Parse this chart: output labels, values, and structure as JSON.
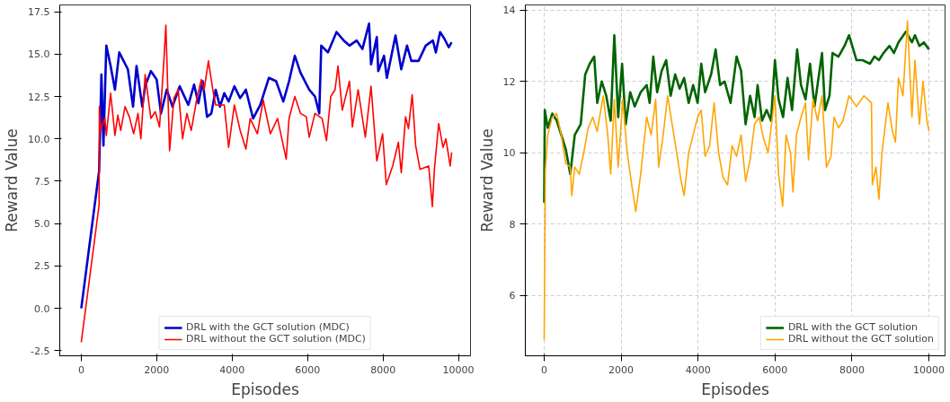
{
  "chart_data": [
    {
      "type": "line",
      "xlabel": "Episodes",
      "ylabel": "Reward Value",
      "xlim": [
        -570,
        10320
      ],
      "ylim": [
        -2.8,
        17.9
      ],
      "xticks": [
        0,
        2000,
        4000,
        6000,
        8000,
        10000
      ],
      "yticks": [
        {
          "value": -2.5,
          "label": "-2.5"
        },
        {
          "value": 0,
          "label": "0.0"
        },
        {
          "value": 2.5,
          "label": "2.5"
        },
        {
          "value": 5,
          "label": "5.0"
        },
        {
          "value": 7.5,
          "label": "7.5"
        },
        {
          "value": 10,
          "label": "10.0"
        },
        {
          "value": 12.5,
          "label": "12.5"
        },
        {
          "value": 15,
          "label": "15.0"
        },
        {
          "value": 17.5,
          "label": "17.5"
        }
      ],
      "grid": false,
      "legend": "bottom",
      "series": [
        {
          "name": "DRL with the GCT solution (MDC)",
          "color": "#0000cc",
          "x": [
            0,
            473,
            534,
            588,
            664,
            778,
            893,
            1007,
            1122,
            1236,
            1373,
            1465,
            1618,
            1694,
            1846,
            1999,
            2113,
            2266,
            2419,
            2609,
            2838,
            2991,
            3105,
            3220,
            3334,
            3449,
            3563,
            3678,
            3792,
            3907,
            4059,
            4212,
            4365,
            4555,
            4746,
            4975,
            5166,
            5357,
            5509,
            5662,
            5814,
            6043,
            6196,
            6310,
            6363,
            6539,
            6768,
            6959,
            7111,
            7302,
            7454,
            7630,
            7683,
            7836,
            7874,
            8027,
            8103,
            8332,
            8484,
            8637,
            8751,
            8942,
            9133,
            9324,
            9400,
            9514,
            9629,
            9743,
            9820
          ],
          "values": [
            0,
            8.1,
            13.8,
            9.6,
            15.5,
            14.3,
            12.9,
            15.1,
            14.6,
            14.1,
            11.9,
            14.3,
            11.9,
            13.1,
            14.0,
            13.5,
            11.5,
            12.9,
            11.9,
            13.1,
            12.0,
            13.2,
            12.1,
            13.4,
            11.3,
            11.5,
            12.9,
            11.9,
            12.7,
            12.2,
            13.1,
            12.4,
            12.9,
            11.2,
            12.0,
            13.6,
            13.4,
            12.2,
            13.4,
            14.9,
            13.9,
            12.9,
            12.5,
            11.5,
            15.5,
            15.1,
            16.3,
            15.8,
            15.5,
            15.8,
            15.3,
            16.8,
            14.4,
            16.0,
            14.0,
            14.9,
            13.6,
            16.1,
            14.1,
            15.5,
            14.6,
            14.6,
            15.5,
            15.8,
            15.1,
            16.3,
            15.9,
            15.4,
            15.7
          ]
        },
        {
          "name": "DRL without the GCT solution (MDC)",
          "color": "#ff0000",
          "x": [
            0,
            473,
            480,
            511,
            626,
            664,
            778,
            893,
            969,
            1046,
            1160,
            1274,
            1389,
            1503,
            1580,
            1694,
            1846,
            1961,
            2075,
            2190,
            2243,
            2342,
            2457,
            2571,
            2686,
            2800,
            2915,
            3067,
            3182,
            3258,
            3372,
            3487,
            3563,
            3792,
            3907,
            4059,
            4212,
            4365,
            4479,
            4670,
            4823,
            5013,
            5204,
            5433,
            5509,
            5662,
            5814,
            5967,
            6043,
            6196,
            6387,
            6501,
            6615,
            6730,
            6806,
            6921,
            7111,
            7188,
            7340,
            7531,
            7683,
            7836,
            7989,
            8088,
            8256,
            8408,
            8484,
            8599,
            8675,
            8774,
            8866,
            8981,
            9210,
            9309,
            9362,
            9476,
            9591,
            9667,
            9782,
            9820
          ],
          "values": [
            -2.0,
            6.1,
            11.9,
            10.5,
            11.2,
            10.2,
            12.7,
            10.2,
            11.4,
            10.5,
            11.9,
            11.3,
            10.3,
            11.5,
            10.0,
            13.8,
            11.2,
            11.6,
            10.7,
            14.6,
            16.7,
            9.3,
            12.4,
            12.9,
            10.0,
            11.5,
            10.5,
            12.4,
            13.5,
            12.9,
            14.6,
            12.9,
            12.0,
            12.0,
            9.5,
            12.0,
            10.5,
            9.4,
            11.2,
            10.3,
            12.3,
            10.3,
            11.2,
            8.8,
            11.2,
            12.5,
            11.5,
            11.3,
            10.1,
            11.5,
            11.2,
            9.9,
            12.5,
            12.9,
            14.3,
            11.7,
            13.4,
            10.7,
            12.9,
            10.1,
            13.1,
            8.7,
            10.3,
            7.3,
            8.4,
            9.8,
            8.0,
            11.3,
            10.6,
            12.6,
            9.6,
            8.2,
            8.4,
            6.0,
            8.2,
            10.9,
            9.5,
            10.0,
            8.4,
            9.2
          ]
        }
      ]
    },
    {
      "type": "line",
      "xlabel": "Episodes",
      "ylabel": "Reward Value",
      "xlim": [
        -490,
        10420
      ],
      "ylim": [
        4.3,
        14.15
      ],
      "xticks": [
        0,
        2000,
        4000,
        6000,
        8000,
        10000
      ],
      "yticks": [
        6,
        8,
        10,
        12,
        14
      ],
      "grid": true,
      "legend": "bottom right",
      "series": [
        {
          "name": "DRL with the GCT solution",
          "color": "#006400",
          "x": [
            0,
            16,
            93,
            210,
            327,
            444,
            561,
            678,
            795,
            950,
            1067,
            1184,
            1301,
            1379,
            1496,
            1613,
            1729,
            1823,
            1924,
            2025,
            2119,
            2236,
            2353,
            2508,
            2664,
            2742,
            2836,
            2937,
            3054,
            3171,
            3287,
            3404,
            3521,
            3638,
            3755,
            3872,
            3989,
            4082,
            4183,
            4339,
            4456,
            4573,
            4690,
            4845,
            5001,
            5118,
            5235,
            5352,
            5469,
            5547,
            5664,
            5781,
            5897,
            5998,
            6092,
            6209,
            6326,
            6443,
            6575,
            6676,
            6793,
            6910,
            7027,
            7105,
            7222,
            7300,
            7416,
            7494,
            7650,
            7806,
            7923,
            8118,
            8273,
            8468,
            8585,
            8702,
            8819,
            8975,
            9092,
            9209,
            9403,
            9559,
            9637,
            9754,
            9871,
            10004
          ],
          "values": [
            8.6,
            11.2,
            10.7,
            11.1,
            10.9,
            10.5,
            10.1,
            9.4,
            10.5,
            10.8,
            12.2,
            12.5,
            12.7,
            11.4,
            12.0,
            11.6,
            10.9,
            13.3,
            11.0,
            12.5,
            10.8,
            11.7,
            11.3,
            11.7,
            11.9,
            11.4,
            12.7,
            11.7,
            12.3,
            12.6,
            11.6,
            12.2,
            11.8,
            12.1,
            11.4,
            11.9,
            11.4,
            12.5,
            11.7,
            12.2,
            12.9,
            11.9,
            12.0,
            11.4,
            12.7,
            12.3,
            10.8,
            11.6,
            11.0,
            11.9,
            10.9,
            11.2,
            10.9,
            12.6,
            11.5,
            11.0,
            12.1,
            11.2,
            12.9,
            11.9,
            11.5,
            12.5,
            11.3,
            11.9,
            12.8,
            11.2,
            11.6,
            12.8,
            12.7,
            13.0,
            13.3,
            12.6,
            12.6,
            12.5,
            12.7,
            12.6,
            12.8,
            13.0,
            12.8,
            13.1,
            13.4,
            13.1,
            13.3,
            13.0,
            13.1,
            12.9
          ]
        },
        {
          "name": "DRL without the GCT solution",
          "color": "#ffa500",
          "x": [
            0,
            30,
            93,
            210,
            327,
            444,
            561,
            678,
            717,
            795,
            911,
            1028,
            1145,
            1262,
            1379,
            1535,
            1652,
            1729,
            1823,
            1924,
            2041,
            2158,
            2275,
            2380,
            2508,
            2664,
            2781,
            2898,
            2976,
            3093,
            3209,
            3326,
            3443,
            3560,
            3638,
            3755,
            3872,
            3989,
            4082,
            4183,
            4300,
            4417,
            4534,
            4651,
            4768,
            4885,
            5001,
            5118,
            5235,
            5352,
            5469,
            5586,
            5703,
            5820,
            5998,
            6092,
            6200,
            6287,
            6404,
            6466,
            6559,
            6676,
            6793,
            6871,
            6988,
            7105,
            7222,
            7339,
            7456,
            7534,
            7650,
            7767,
            7923,
            8118,
            8312,
            8507,
            8530,
            8624,
            8702,
            8780,
            8936,
            9053,
            9131,
            9209,
            9326,
            9443,
            9559,
            9637,
            9754,
            9847,
            9949,
            10004
          ],
          "values": [
            4.75,
            9.5,
            10.5,
            11.0,
            11.1,
            10.5,
            9.7,
            9.6,
            8.8,
            9.6,
            9.4,
            10.0,
            10.7,
            11.0,
            10.6,
            11.6,
            10.5,
            9.4,
            11.5,
            9.6,
            11.5,
            10.0,
            9.1,
            8.35,
            9.4,
            11.0,
            10.5,
            11.5,
            9.6,
            10.5,
            11.6,
            10.8,
            10.0,
            9.2,
            8.8,
            10.0,
            10.5,
            11.0,
            11.2,
            9.9,
            10.2,
            11.4,
            10.0,
            9.3,
            9.1,
            10.2,
            9.9,
            10.5,
            9.2,
            9.8,
            10.8,
            11.0,
            10.4,
            10.0,
            11.6,
            9.4,
            8.5,
            10.5,
            10.0,
            8.9,
            10.5,
            11.0,
            11.4,
            9.8,
            11.5,
            10.9,
            11.6,
            9.6,
            9.9,
            11.0,
            10.7,
            10.9,
            11.6,
            11.3,
            11.6,
            11.4,
            9.1,
            9.6,
            8.7,
            10.0,
            11.4,
            10.6,
            10.3,
            12.1,
            11.6,
            13.7,
            11.0,
            12.6,
            10.8,
            12.0,
            10.9,
            10.6
          ]
        }
      ]
    }
  ]
}
